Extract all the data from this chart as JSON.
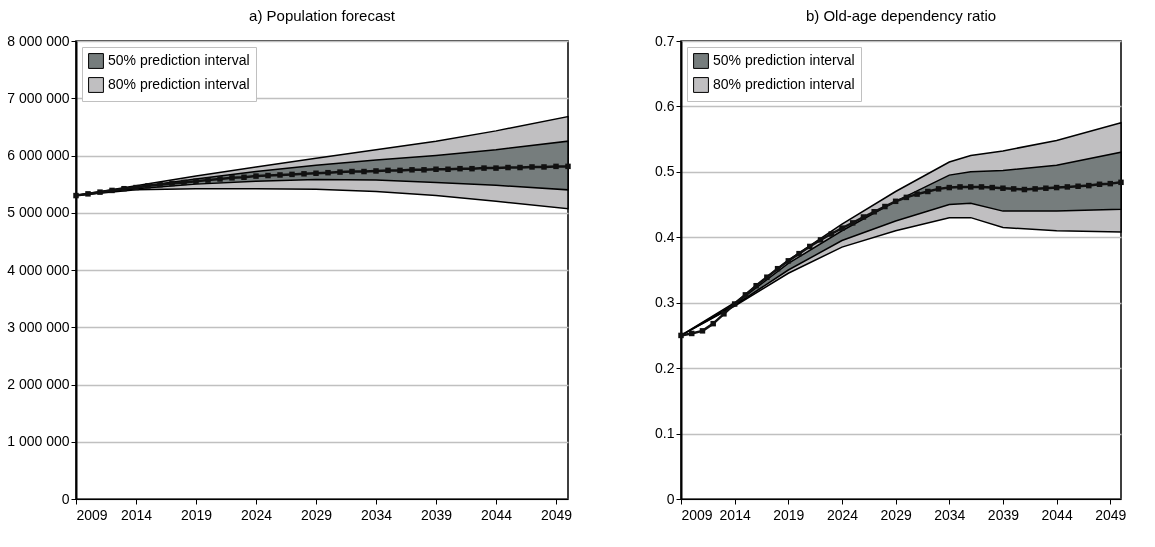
{
  "chart_data": [
    {
      "type": "line",
      "title": "a) Population forecast",
      "xlim": [
        2009,
        2050
      ],
      "xticks": [
        2009,
        2014,
        2019,
        2024,
        2029,
        2034,
        2039,
        2044,
        2049
      ],
      "ylim": [
        0,
        8000000
      ],
      "yticks": [
        0,
        {
          "value": 1000000,
          "label": "1 000 000"
        },
        {
          "value": 2000000,
          "label": "2 000 000"
        },
        {
          "value": 3000000,
          "label": "3 000 000"
        },
        {
          "value": 4000000,
          "label": "4 000 000"
        },
        {
          "value": 5000000,
          "label": "5 000 000"
        },
        {
          "value": 6000000,
          "label": "6 000 000"
        },
        {
          "value": 7000000,
          "label": "7 000 000"
        },
        {
          "value": 8000000,
          "label": "8 000 000"
        }
      ],
      "grid": "y",
      "legend": "top left",
      "x": [
        2009,
        2010,
        2011,
        2012,
        2013,
        2014,
        2015,
        2016,
        2017,
        2018,
        2019,
        2020,
        2021,
        2022,
        2023,
        2024,
        2025,
        2026,
        2027,
        2028,
        2029,
        2030,
        2031,
        2032,
        2033,
        2034,
        2035,
        2036,
        2037,
        2038,
        2039,
        2040,
        2041,
        2042,
        2043,
        2044,
        2045,
        2046,
        2047,
        2048,
        2049,
        2050
      ],
      "series": [
        {
          "type": "area",
          "name": "80% prediction interval",
          "color": "#c0bfc1",
          "x": [
            2009,
            2014,
            2019,
            2024,
            2029,
            2034,
            2039,
            2044,
            2050
          ],
          "values": [
            null,
            null,
            null,
            null,
            null,
            null,
            null,
            null,
            null
          ],
          "lower": [
            5300000,
            5400000,
            5420000,
            5420000,
            5410000,
            5370000,
            5300000,
            5200000,
            5070000
          ],
          "upper": [
            5300000,
            5470000,
            5640000,
            5800000,
            5950000,
            6100000,
            6250000,
            6430000,
            6680000
          ]
        },
        {
          "type": "area",
          "name": "50% prediction interval",
          "color": "#767d7d",
          "x": [
            2009,
            2014,
            2019,
            2024,
            2029,
            2034,
            2039,
            2044,
            2050
          ],
          "values": [
            null,
            null,
            null,
            null,
            null,
            null,
            null,
            null,
            null
          ],
          "lower": [
            5300000,
            5420000,
            5500000,
            5550000,
            5580000,
            5570000,
            5530000,
            5480000,
            5400000
          ],
          "upper": [
            5300000,
            5450000,
            5590000,
            5720000,
            5830000,
            5920000,
            6000000,
            6100000,
            6250000
          ]
        },
        {
          "color": "#111111",
          "marker": "square",
          "values": [
            5300000,
            5330000,
            5360000,
            5390000,
            5420000,
            5440000,
            5470000,
            5490000,
            5510000,
            5530000,
            5550000,
            5570000,
            5590000,
            5610000,
            5620000,
            5640000,
            5650000,
            5660000,
            5670000,
            5680000,
            5690000,
            5700000,
            5710000,
            5720000,
            5720000,
            5730000,
            5740000,
            5740000,
            5750000,
            5750000,
            5760000,
            5760000,
            5770000,
            5770000,
            5780000,
            5780000,
            5790000,
            5790000,
            5800000,
            5800000,
            5810000,
            5810000
          ]
        }
      ]
    },
    {
      "type": "line",
      "title": "b) Old-age dependency ratio",
      "xlim": [
        2009,
        2050
      ],
      "xticks": [
        2009,
        2014,
        2019,
        2024,
        2029,
        2034,
        2039,
        2044,
        2049
      ],
      "ylim": [
        0,
        0.7
      ],
      "yticks": [
        0,
        0.1,
        0.2,
        0.3,
        0.4,
        0.5,
        0.6,
        0.7
      ],
      "grid": "y",
      "legend": "top left",
      "x": [
        2009,
        2010,
        2011,
        2012,
        2013,
        2014,
        2015,
        2016,
        2017,
        2018,
        2019,
        2020,
        2021,
        2022,
        2023,
        2024,
        2025,
        2026,
        2027,
        2028,
        2029,
        2030,
        2031,
        2032,
        2033,
        2034,
        2035,
        2036,
        2037,
        2038,
        2039,
        2040,
        2041,
        2042,
        2043,
        2044,
        2045,
        2046,
        2047,
        2048,
        2049,
        2050
      ],
      "series": [
        {
          "type": "area",
          "name": "80% prediction interval",
          "color": "#c0bfc1",
          "x": [
            2009,
            2014,
            2019,
            2024,
            2029,
            2034,
            2036,
            2039,
            2044,
            2050
          ],
          "values": [
            null,
            null,
            null,
            null,
            null,
            null,
            null,
            null,
            null,
            null
          ],
          "lower": [
            0.25,
            0.295,
            0.345,
            0.385,
            0.41,
            0.43,
            0.43,
            0.415,
            0.41,
            0.408
          ],
          "upper": [
            0.25,
            0.3,
            0.365,
            0.42,
            0.47,
            0.515,
            0.525,
            0.532,
            0.548,
            0.575
          ]
        },
        {
          "type": "area",
          "name": "50% prediction interval",
          "color": "#767d7d",
          "x": [
            2009,
            2014,
            2019,
            2024,
            2029,
            2034,
            2036,
            2039,
            2044,
            2050
          ],
          "values": [
            null,
            null,
            null,
            null,
            null,
            null,
            null,
            null,
            null,
            null
          ],
          "lower": [
            0.25,
            0.296,
            0.35,
            0.395,
            0.425,
            0.45,
            0.452,
            0.44,
            0.44,
            0.443
          ],
          "upper": [
            0.25,
            0.298,
            0.36,
            0.41,
            0.455,
            0.495,
            0.5,
            0.502,
            0.51,
            0.53
          ]
        },
        {
          "color": "#111111",
          "marker": "square",
          "values": [
            0.25,
            0.253,
            0.257,
            0.268,
            0.283,
            0.298,
            0.312,
            0.326,
            0.339,
            0.352,
            0.364,
            0.375,
            0.386,
            0.396,
            0.405,
            0.414,
            0.422,
            0.431,
            0.439,
            0.447,
            0.455,
            0.461,
            0.466,
            0.47,
            0.474,
            0.476,
            0.477,
            0.477,
            0.477,
            0.476,
            0.475,
            0.474,
            0.473,
            0.474,
            0.475,
            0.476,
            0.477,
            0.478,
            0.479,
            0.481,
            0.482,
            0.484
          ]
        }
      ]
    }
  ]
}
